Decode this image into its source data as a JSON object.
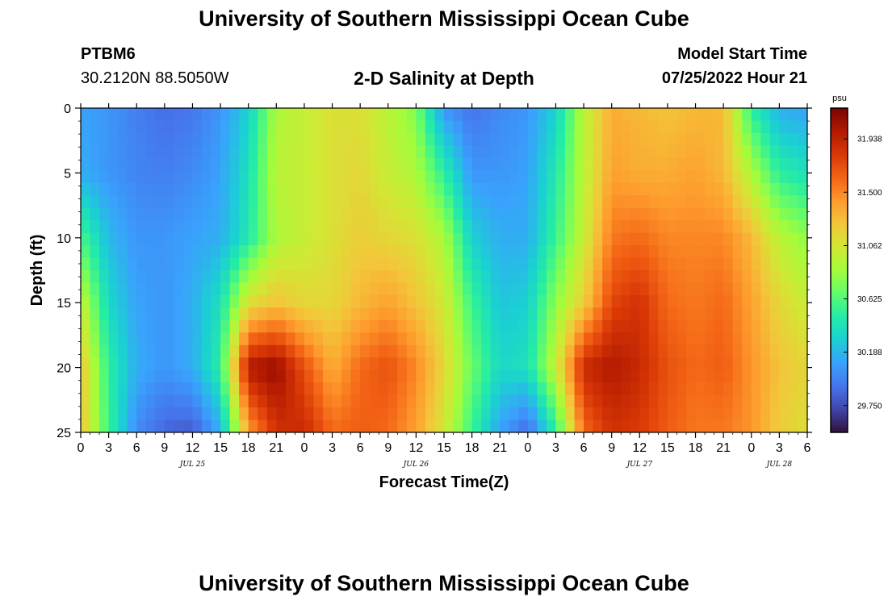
{
  "header": {
    "title": "University of Southern Mississippi Ocean Cube",
    "station": "PTBM6",
    "coords": "30.2120N  88.5050W",
    "chart_title": "2-D Salinity at Depth",
    "model_start_label": "Model Start Time",
    "model_start_value": "07/25/2022 Hour 21"
  },
  "footer": {
    "title": "University of Southern Mississippi Ocean Cube"
  },
  "colors": {
    "colormap": [
      "#30123b",
      "#4145ab",
      "#4675ed",
      "#39a2fc",
      "#1bcfd4",
      "#24eca6",
      "#61fc6c",
      "#a4fc3b",
      "#d1e834",
      "#f3c63a",
      "#fe9b2d",
      "#f36315",
      "#d93806",
      "#b11901",
      "#7a0403"
    ]
  },
  "chart_data": {
    "type": "heatmap",
    "title": "2-D Salinity at Depth",
    "xlabel": "Forecast Time(Z)",
    "ylabel": "Depth (ft)",
    "x_hours_range": [
      0,
      78
    ],
    "ylim": [
      0,
      25
    ],
    "y_ticks": [
      "0",
      "5",
      "10",
      "15",
      "20",
      "25"
    ],
    "x_tick_labels": [
      "0",
      "3",
      "6",
      "9",
      "12",
      "15",
      "18",
      "21",
      "0",
      "3",
      "6",
      "9",
      "12",
      "15",
      "18",
      "21",
      "0",
      "3",
      "6",
      "9",
      "12",
      "15",
      "18",
      "21",
      "0",
      "3",
      "6"
    ],
    "day_labels": [
      {
        "text": "JUL 25",
        "hour": 12
      },
      {
        "text": "JUL 26",
        "hour": 36
      },
      {
        "text": "JUL 27",
        "hour": 60
      },
      {
        "text": "JUL 28",
        "hour": 75
      }
    ],
    "colorbar": {
      "unit": "psu",
      "min": 29.53,
      "max": 32.19,
      "ticks": [
        "31.938",
        "31.500",
        "31.062",
        "30.625",
        "30.188",
        "29.750"
      ]
    },
    "columns_hours": [
      0,
      3,
      6,
      9,
      12,
      15,
      18,
      21,
      24,
      27,
      30,
      33,
      36,
      39,
      42,
      45,
      48,
      51,
      54,
      57,
      60,
      63,
      66,
      69,
      72,
      75,
      78
    ],
    "rows_depth_ft": [
      0,
      5,
      10,
      15,
      20,
      25
    ],
    "values_psu": [
      [
        30.1,
        30.05,
        29.95,
        29.88,
        29.92,
        30.05,
        30.3,
        30.9,
        31.0,
        31.1,
        31.1,
        30.95,
        30.75,
        30.05,
        29.9,
        30.0,
        30.05,
        30.3,
        30.95,
        31.35,
        31.3,
        31.25,
        31.3,
        31.3,
        30.5,
        30.15,
        30.1
      ],
      [
        30.15,
        30.05,
        29.98,
        29.95,
        30.0,
        30.1,
        30.4,
        30.95,
        31.0,
        31.1,
        31.15,
        31.0,
        30.9,
        30.5,
        30.05,
        30.05,
        30.1,
        30.45,
        30.95,
        31.4,
        31.35,
        31.35,
        31.4,
        31.3,
        30.9,
        30.5,
        30.4
      ],
      [
        30.6,
        30.2,
        30.05,
        30.05,
        30.1,
        30.15,
        30.45,
        30.9,
        31.0,
        31.1,
        31.2,
        31.15,
        31.1,
        30.9,
        30.3,
        30.15,
        30.15,
        30.55,
        31.0,
        31.55,
        31.6,
        31.5,
        31.5,
        31.5,
        31.3,
        30.95,
        30.8
      ],
      [
        31.0,
        30.35,
        30.1,
        30.05,
        30.15,
        30.4,
        31.1,
        31.25,
        31.15,
        31.15,
        31.3,
        31.4,
        31.25,
        31.05,
        30.55,
        30.25,
        30.3,
        30.8,
        31.2,
        31.75,
        31.85,
        31.6,
        31.55,
        31.6,
        31.4,
        31.15,
        31.0
      ],
      [
        31.25,
        30.5,
        30.15,
        30.05,
        30.15,
        30.5,
        32.0,
        32.1,
        31.7,
        31.35,
        31.6,
        31.7,
        31.5,
        31.15,
        30.7,
        30.35,
        30.4,
        31.0,
        31.9,
        32.0,
        31.9,
        31.7,
        31.6,
        31.65,
        31.45,
        31.25,
        31.15
      ],
      [
        31.25,
        30.55,
        30.0,
        29.85,
        29.8,
        30.15,
        31.4,
        31.85,
        31.9,
        31.6,
        31.65,
        31.6,
        31.4,
        31.05,
        30.55,
        30.1,
        29.85,
        30.5,
        31.6,
        31.85,
        31.8,
        31.65,
        31.55,
        31.55,
        31.45,
        31.2,
        31.1
      ]
    ]
  }
}
